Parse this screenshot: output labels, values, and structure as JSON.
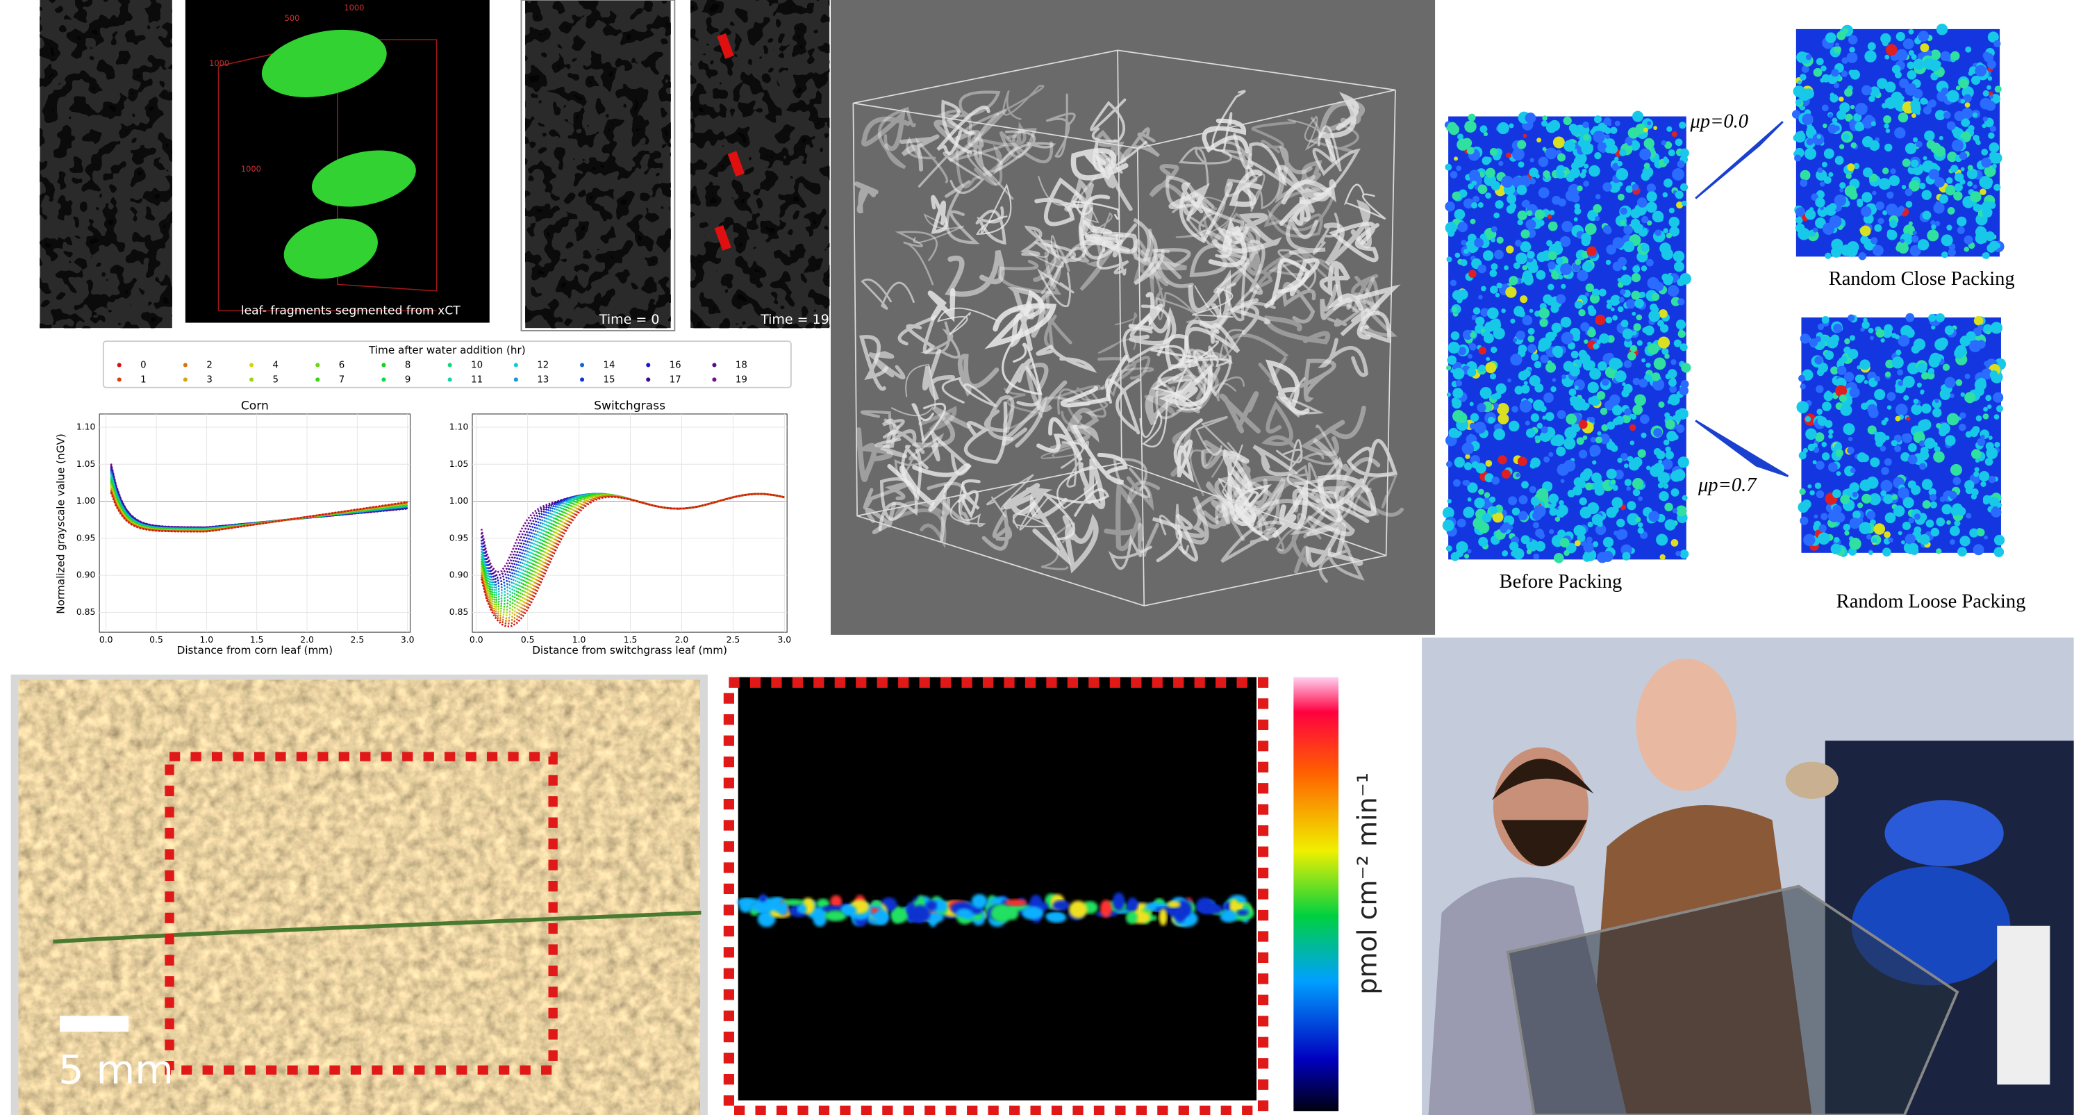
{
  "panels": {
    "xct": {
      "axis_labels": [
        "500",
        "1000",
        "1000",
        "1000"
      ],
      "caption": "leaf- fragments segmented from xCT",
      "time_labels": [
        "Time = 0",
        "Time = 19"
      ]
    },
    "plots": {
      "legend_title": "Time after water addition (hr)",
      "legend": [
        "0",
        "1",
        "2",
        "3",
        "4",
        "5",
        "6",
        "7",
        "8",
        "9",
        "10",
        "11",
        "12",
        "13",
        "14",
        "15",
        "16",
        "17",
        "18",
        "19"
      ],
      "ylabel": "Normalized grayscale value (nGV)",
      "yticks": [
        "1.10",
        "1.05",
        "1.00",
        "0.95",
        "0.90",
        "0.85"
      ],
      "xticks": [
        "0.0",
        "0.5",
        "1.0",
        "1.5",
        "2.0",
        "2.5",
        "3.0"
      ],
      "charts": [
        {
          "title": "Corn",
          "xlabel": "Distance from corn leaf (mm)"
        },
        {
          "title": "Switchgrass",
          "xlabel": "Distance from switchgrass leaf (mm)"
        }
      ]
    },
    "packing": {
      "mu_close": "μp=0.0",
      "close": "Random Close Packing",
      "mu_loose": "μp=0.7",
      "loose": "Random Loose Packing",
      "before": "Before Packing"
    },
    "soil": {
      "scale": "5 mm"
    },
    "flux": {
      "unit": "pmol cm⁻² min⁻¹"
    }
  }
}
